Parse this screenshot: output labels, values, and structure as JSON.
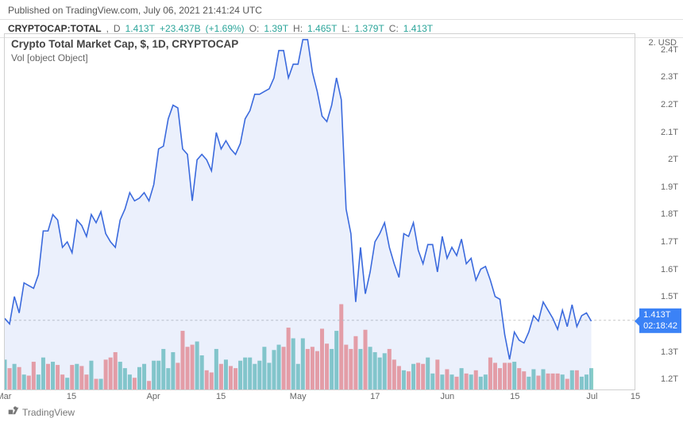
{
  "header": {
    "published": "Published on TradingView.com, July 06, 2021 21:41:24 UTC"
  },
  "ohlc": {
    "symbol": "CRYPTOCAP:TOTAL",
    "interval": "D",
    "price": "1.413T",
    "change": "+23.437B",
    "change_pct": "(+1.69%)",
    "o_lbl": "O:",
    "o": "1.39T",
    "h_lbl": "H:",
    "h": "1.465T",
    "l_lbl": "L:",
    "l": "1.379T",
    "c_lbl": "C:",
    "c": "1.413T"
  },
  "title": "Crypto Total Market Cap, $, 1D, CRYPTOCAP",
  "vol_label": "Vol [object Object]",
  "usd": "USD",
  "footer": "TradingView",
  "chart": {
    "type": "area-line",
    "line_color": "#3b6add",
    "fill_color": "rgba(90,130,230,0.12)",
    "background": "#ffffff",
    "border_color": "#d0d0d0",
    "y_domain": [
      1.16,
      2.46
    ],
    "x_count": 132,
    "series": [
      1.42,
      1.4,
      1.5,
      1.44,
      1.55,
      1.54,
      1.53,
      1.58,
      1.74,
      1.74,
      1.8,
      1.78,
      1.68,
      1.7,
      1.66,
      1.78,
      1.76,
      1.72,
      1.8,
      1.77,
      1.81,
      1.73,
      1.7,
      1.68,
      1.78,
      1.82,
      1.88,
      1.85,
      1.86,
      1.88,
      1.85,
      1.91,
      2.04,
      2.05,
      2.15,
      2.2,
      2.19,
      2.04,
      2.02,
      1.85,
      2.0,
      2.02,
      2.0,
      1.96,
      2.1,
      2.04,
      2.07,
      2.04,
      2.02,
      2.06,
      2.15,
      2.18,
      2.24,
      2.24,
      2.25,
      2.26,
      2.3,
      2.4,
      2.4,
      2.3,
      2.35,
      2.35,
      2.44,
      2.44,
      2.32,
      2.25,
      2.16,
      2.14,
      2.2,
      2.3,
      2.22,
      1.82,
      1.73,
      1.48,
      1.68,
      1.51,
      1.59,
      1.7,
      1.73,
      1.77,
      1.68,
      1.62,
      1.57,
      1.73,
      1.72,
      1.77,
      1.67,
      1.62,
      1.69,
      1.69,
      1.59,
      1.72,
      1.64,
      1.68,
      1.65,
      1.71,
      1.62,
      1.64,
      1.56,
      1.6,
      1.61,
      1.56,
      1.5,
      1.49,
      1.36,
      1.27,
      1.37,
      1.34,
      1.33,
      1.37,
      1.43,
      1.41,
      1.48,
      1.45,
      1.42,
      1.38,
      1.45,
      1.39,
      1.47,
      1.39,
      1.43,
      1.44,
      1.41
    ],
    "dashed_level": 1.413,
    "price_tag": {
      "price": "1.413T",
      "timer": "02:18:42"
    },
    "yticks": [
      {
        "v": 2.4,
        "l": "2.4T"
      },
      {
        "v": 2.3,
        "l": "2.3T"
      },
      {
        "v": 2.2,
        "l": "2.2T"
      },
      {
        "v": 2.1,
        "l": "2.1T"
      },
      {
        "v": 2.0,
        "l": "2T"
      },
      {
        "v": 1.9,
        "l": "1.9T"
      },
      {
        "v": 1.8,
        "l": "1.8T"
      },
      {
        "v": 1.7,
        "l": "1.7T"
      },
      {
        "v": 1.6,
        "l": "1.6T"
      },
      {
        "v": 1.5,
        "l": "1.5T"
      },
      {
        "v": 1.4,
        "l": "1.4T"
      },
      {
        "v": 1.3,
        "l": "1.3T"
      },
      {
        "v": 1.2,
        "l": "1.2T"
      }
    ],
    "xticks": [
      {
        "i": 0,
        "l": "Mar"
      },
      {
        "i": 14,
        "l": "15"
      },
      {
        "i": 31,
        "l": "Apr"
      },
      {
        "i": 45,
        "l": "15"
      },
      {
        "i": 61,
        "l": "May"
      },
      {
        "i": 77,
        "l": "17"
      },
      {
        "i": 92,
        "l": "Jun"
      },
      {
        "i": 106,
        "l": "15"
      },
      {
        "i": 122,
        "l": "Jul"
      },
      {
        "i": 131,
        "l": "15"
      }
    ]
  },
  "volume": {
    "y_domain": [
      0,
      1.0
    ],
    "up_color": "rgba(38,166,154,0.55)",
    "down_color": "rgba(239,83,80,0.55)",
    "bars": [
      {
        "v": 0.28,
        "u": 1
      },
      {
        "v": 0.2,
        "u": 0
      },
      {
        "v": 0.24,
        "u": 1
      },
      {
        "v": 0.21,
        "u": 0
      },
      {
        "v": 0.14,
        "u": 1
      },
      {
        "v": 0.13,
        "u": 0
      },
      {
        "v": 0.26,
        "u": 0
      },
      {
        "v": 0.14,
        "u": 1
      },
      {
        "v": 0.3,
        "u": 1
      },
      {
        "v": 0.24,
        "u": 0
      },
      {
        "v": 0.26,
        "u": 1
      },
      {
        "v": 0.23,
        "u": 0
      },
      {
        "v": 0.14,
        "u": 0
      },
      {
        "v": 0.11,
        "u": 1
      },
      {
        "v": 0.23,
        "u": 0
      },
      {
        "v": 0.24,
        "u": 1
      },
      {
        "v": 0.22,
        "u": 0
      },
      {
        "v": 0.14,
        "u": 0
      },
      {
        "v": 0.27,
        "u": 1
      },
      {
        "v": 0.1,
        "u": 0
      },
      {
        "v": 0.1,
        "u": 1
      },
      {
        "v": 0.28,
        "u": 0
      },
      {
        "v": 0.3,
        "u": 0
      },
      {
        "v": 0.35,
        "u": 0
      },
      {
        "v": 0.26,
        "u": 1
      },
      {
        "v": 0.2,
        "u": 1
      },
      {
        "v": 0.14,
        "u": 1
      },
      {
        "v": 0.11,
        "u": 0
      },
      {
        "v": 0.21,
        "u": 1
      },
      {
        "v": 0.24,
        "u": 1
      },
      {
        "v": 0.08,
        "u": 0
      },
      {
        "v": 0.27,
        "u": 1
      },
      {
        "v": 0.27,
        "u": 1
      },
      {
        "v": 0.38,
        "u": 1
      },
      {
        "v": 0.2,
        "u": 1
      },
      {
        "v": 0.35,
        "u": 1
      },
      {
        "v": 0.25,
        "u": 0
      },
      {
        "v": 0.55,
        "u": 0
      },
      {
        "v": 0.4,
        "u": 0
      },
      {
        "v": 0.42,
        "u": 0
      },
      {
        "v": 0.45,
        "u": 1
      },
      {
        "v": 0.32,
        "u": 1
      },
      {
        "v": 0.18,
        "u": 0
      },
      {
        "v": 0.16,
        "u": 0
      },
      {
        "v": 0.38,
        "u": 1
      },
      {
        "v": 0.24,
        "u": 0
      },
      {
        "v": 0.28,
        "u": 1
      },
      {
        "v": 0.22,
        "u": 0
      },
      {
        "v": 0.2,
        "u": 0
      },
      {
        "v": 0.27,
        "u": 1
      },
      {
        "v": 0.3,
        "u": 1
      },
      {
        "v": 0.3,
        "u": 1
      },
      {
        "v": 0.24,
        "u": 1
      },
      {
        "v": 0.27,
        "u": 1
      },
      {
        "v": 0.4,
        "u": 1
      },
      {
        "v": 0.25,
        "u": 1
      },
      {
        "v": 0.37,
        "u": 1
      },
      {
        "v": 0.42,
        "u": 1
      },
      {
        "v": 0.4,
        "u": 0
      },
      {
        "v": 0.58,
        "u": 0
      },
      {
        "v": 0.48,
        "u": 1
      },
      {
        "v": 0.24,
        "u": 1
      },
      {
        "v": 0.48,
        "u": 1
      },
      {
        "v": 0.38,
        "u": 0
      },
      {
        "v": 0.4,
        "u": 0
      },
      {
        "v": 0.36,
        "u": 0
      },
      {
        "v": 0.57,
        "u": 0
      },
      {
        "v": 0.43,
        "u": 0
      },
      {
        "v": 0.38,
        "u": 1
      },
      {
        "v": 0.55,
        "u": 1
      },
      {
        "v": 0.8,
        "u": 0
      },
      {
        "v": 0.42,
        "u": 0
      },
      {
        "v": 0.38,
        "u": 0
      },
      {
        "v": 0.5,
        "u": 0
      },
      {
        "v": 0.38,
        "u": 1
      },
      {
        "v": 0.56,
        "u": 0
      },
      {
        "v": 0.4,
        "u": 1
      },
      {
        "v": 0.35,
        "u": 1
      },
      {
        "v": 0.3,
        "u": 1
      },
      {
        "v": 0.34,
        "u": 1
      },
      {
        "v": 0.38,
        "u": 0
      },
      {
        "v": 0.28,
        "u": 0
      },
      {
        "v": 0.22,
        "u": 0
      },
      {
        "v": 0.18,
        "u": 1
      },
      {
        "v": 0.17,
        "u": 0
      },
      {
        "v": 0.24,
        "u": 1
      },
      {
        "v": 0.25,
        "u": 0
      },
      {
        "v": 0.24,
        "u": 0
      },
      {
        "v": 0.3,
        "u": 1
      },
      {
        "v": 0.15,
        "u": 1
      },
      {
        "v": 0.28,
        "u": 0
      },
      {
        "v": 0.14,
        "u": 1
      },
      {
        "v": 0.19,
        "u": 0
      },
      {
        "v": 0.14,
        "u": 1
      },
      {
        "v": 0.12,
        "u": 0
      },
      {
        "v": 0.2,
        "u": 1
      },
      {
        "v": 0.15,
        "u": 0
      },
      {
        "v": 0.14,
        "u": 1
      },
      {
        "v": 0.18,
        "u": 0
      },
      {
        "v": 0.12,
        "u": 1
      },
      {
        "v": 0.14,
        "u": 1
      },
      {
        "v": 0.3,
        "u": 0
      },
      {
        "v": 0.25,
        "u": 0
      },
      {
        "v": 0.2,
        "u": 0
      },
      {
        "v": 0.25,
        "u": 0
      },
      {
        "v": 0.25,
        "u": 0
      },
      {
        "v": 0.26,
        "u": 1
      },
      {
        "v": 0.2,
        "u": 0
      },
      {
        "v": 0.17,
        "u": 0
      },
      {
        "v": 0.12,
        "u": 1
      },
      {
        "v": 0.19,
        "u": 1
      },
      {
        "v": 0.13,
        "u": 0
      },
      {
        "v": 0.19,
        "u": 1
      },
      {
        "v": 0.15,
        "u": 0
      },
      {
        "v": 0.15,
        "u": 0
      },
      {
        "v": 0.15,
        "u": 0
      },
      {
        "v": 0.14,
        "u": 1
      },
      {
        "v": 0.1,
        "u": 0
      },
      {
        "v": 0.18,
        "u": 1
      },
      {
        "v": 0.18,
        "u": 0
      },
      {
        "v": 0.12,
        "u": 1
      },
      {
        "v": 0.14,
        "u": 1
      },
      {
        "v": 0.2,
        "u": 1
      }
    ]
  }
}
